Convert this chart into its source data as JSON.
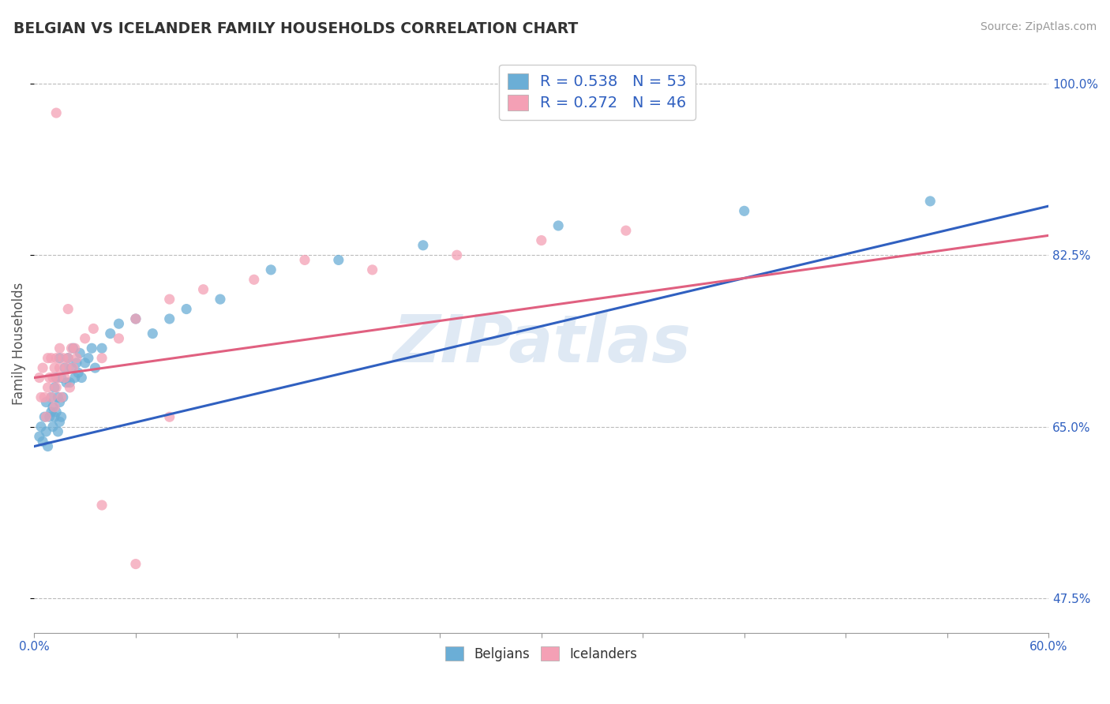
{
  "title": "BELGIAN VS ICELANDER FAMILY HOUSEHOLDS CORRELATION CHART",
  "source_text": "Source: ZipAtlas.com",
  "ylabel": "Family Households",
  "xlim": [
    0.0,
    0.6
  ],
  "ylim": [
    0.44,
    1.03
  ],
  "color_belgian": "#6baed6",
  "color_icelander": "#f4a0b5",
  "color_blue_text": "#3060c0",
  "color_pink_line": "#e06080",
  "color_blue_line": "#3060c0",
  "watermark": "ZIPatlas",
  "legend_line1": "R = 0.538   N = 53",
  "legend_line2": "R = 0.272   N = 46",
  "ytick_positions": [
    0.475,
    0.65,
    0.825,
    1.0
  ],
  "ytick_labels": [
    "47.5%",
    "65.0%",
    "82.5%",
    "100.0%"
  ],
  "belgians_x": [
    0.003,
    0.004,
    0.005,
    0.006,
    0.007,
    0.007,
    0.008,
    0.009,
    0.01,
    0.01,
    0.011,
    0.011,
    0.012,
    0.012,
    0.013,
    0.013,
    0.014,
    0.014,
    0.015,
    0.015,
    0.015,
    0.016,
    0.016,
    0.017,
    0.018,
    0.019,
    0.02,
    0.021,
    0.022,
    0.023,
    0.024,
    0.025,
    0.026,
    0.027,
    0.028,
    0.03,
    0.032,
    0.034,
    0.036,
    0.04,
    0.045,
    0.05,
    0.06,
    0.07,
    0.08,
    0.09,
    0.11,
    0.14,
    0.18,
    0.23,
    0.31,
    0.42,
    0.53
  ],
  "belgians_y": [
    0.64,
    0.65,
    0.635,
    0.66,
    0.645,
    0.675,
    0.63,
    0.66,
    0.665,
    0.68,
    0.65,
    0.67,
    0.66,
    0.69,
    0.665,
    0.7,
    0.645,
    0.68,
    0.655,
    0.675,
    0.72,
    0.66,
    0.7,
    0.68,
    0.71,
    0.695,
    0.72,
    0.695,
    0.71,
    0.73,
    0.7,
    0.715,
    0.705,
    0.725,
    0.7,
    0.715,
    0.72,
    0.73,
    0.71,
    0.73,
    0.745,
    0.755,
    0.76,
    0.745,
    0.76,
    0.77,
    0.78,
    0.81,
    0.82,
    0.835,
    0.855,
    0.87,
    0.88
  ],
  "icelanders_x": [
    0.003,
    0.004,
    0.005,
    0.006,
    0.007,
    0.008,
    0.008,
    0.009,
    0.01,
    0.01,
    0.011,
    0.012,
    0.012,
    0.013,
    0.013,
    0.014,
    0.015,
    0.015,
    0.016,
    0.017,
    0.018,
    0.019,
    0.02,
    0.021,
    0.022,
    0.023,
    0.024,
    0.025,
    0.03,
    0.035,
    0.04,
    0.05,
    0.06,
    0.08,
    0.1,
    0.13,
    0.16,
    0.2,
    0.25,
    0.3,
    0.013,
    0.02,
    0.04,
    0.06,
    0.08,
    0.35
  ],
  "icelanders_y": [
    0.7,
    0.68,
    0.71,
    0.68,
    0.66,
    0.69,
    0.72,
    0.7,
    0.68,
    0.72,
    0.7,
    0.67,
    0.71,
    0.69,
    0.72,
    0.7,
    0.71,
    0.73,
    0.68,
    0.72,
    0.7,
    0.71,
    0.72,
    0.69,
    0.73,
    0.71,
    0.73,
    0.72,
    0.74,
    0.75,
    0.72,
    0.74,
    0.76,
    0.78,
    0.79,
    0.8,
    0.82,
    0.81,
    0.825,
    0.84,
    0.97,
    0.77,
    0.57,
    0.51,
    0.66,
    0.85
  ],
  "trend_blue_x0": 0.0,
  "trend_blue_y0": 0.63,
  "trend_blue_x1": 0.6,
  "trend_blue_y1": 0.875,
  "trend_pink_x0": 0.0,
  "trend_pink_y0": 0.7,
  "trend_pink_x1": 0.6,
  "trend_pink_y1": 0.845
}
